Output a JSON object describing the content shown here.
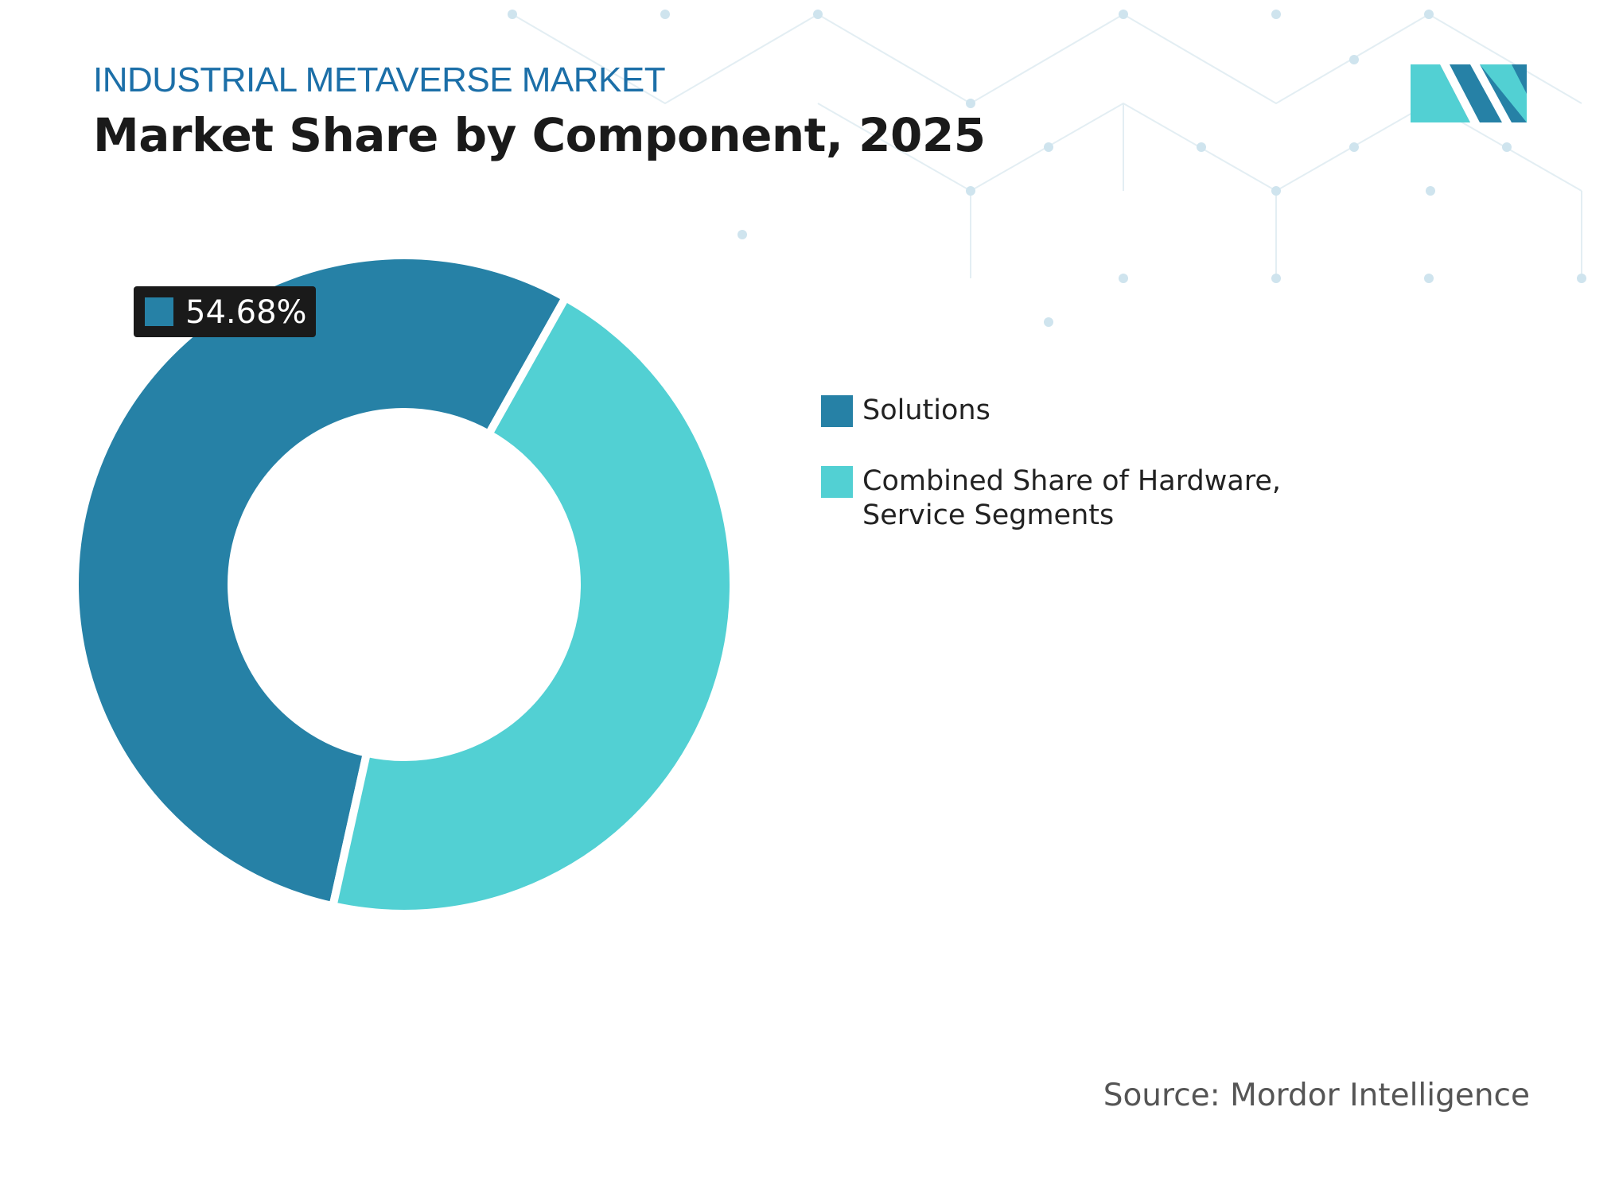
{
  "chart_data": {
    "type": "donut",
    "subtitle": "INDUSTRIAL METAVERSE MARKET",
    "title": "Market Share by Component, 2025",
    "categories": [
      "Solutions",
      "Combined Share of Hardware, Service Segments"
    ],
    "values": [
      54.68,
      45.32
    ],
    "value_labels": [
      "54.68%",
      null
    ],
    "colors": [
      "#2681a6",
      "#52d0d3"
    ],
    "source": "Source: Mordor Intelligence"
  }
}
